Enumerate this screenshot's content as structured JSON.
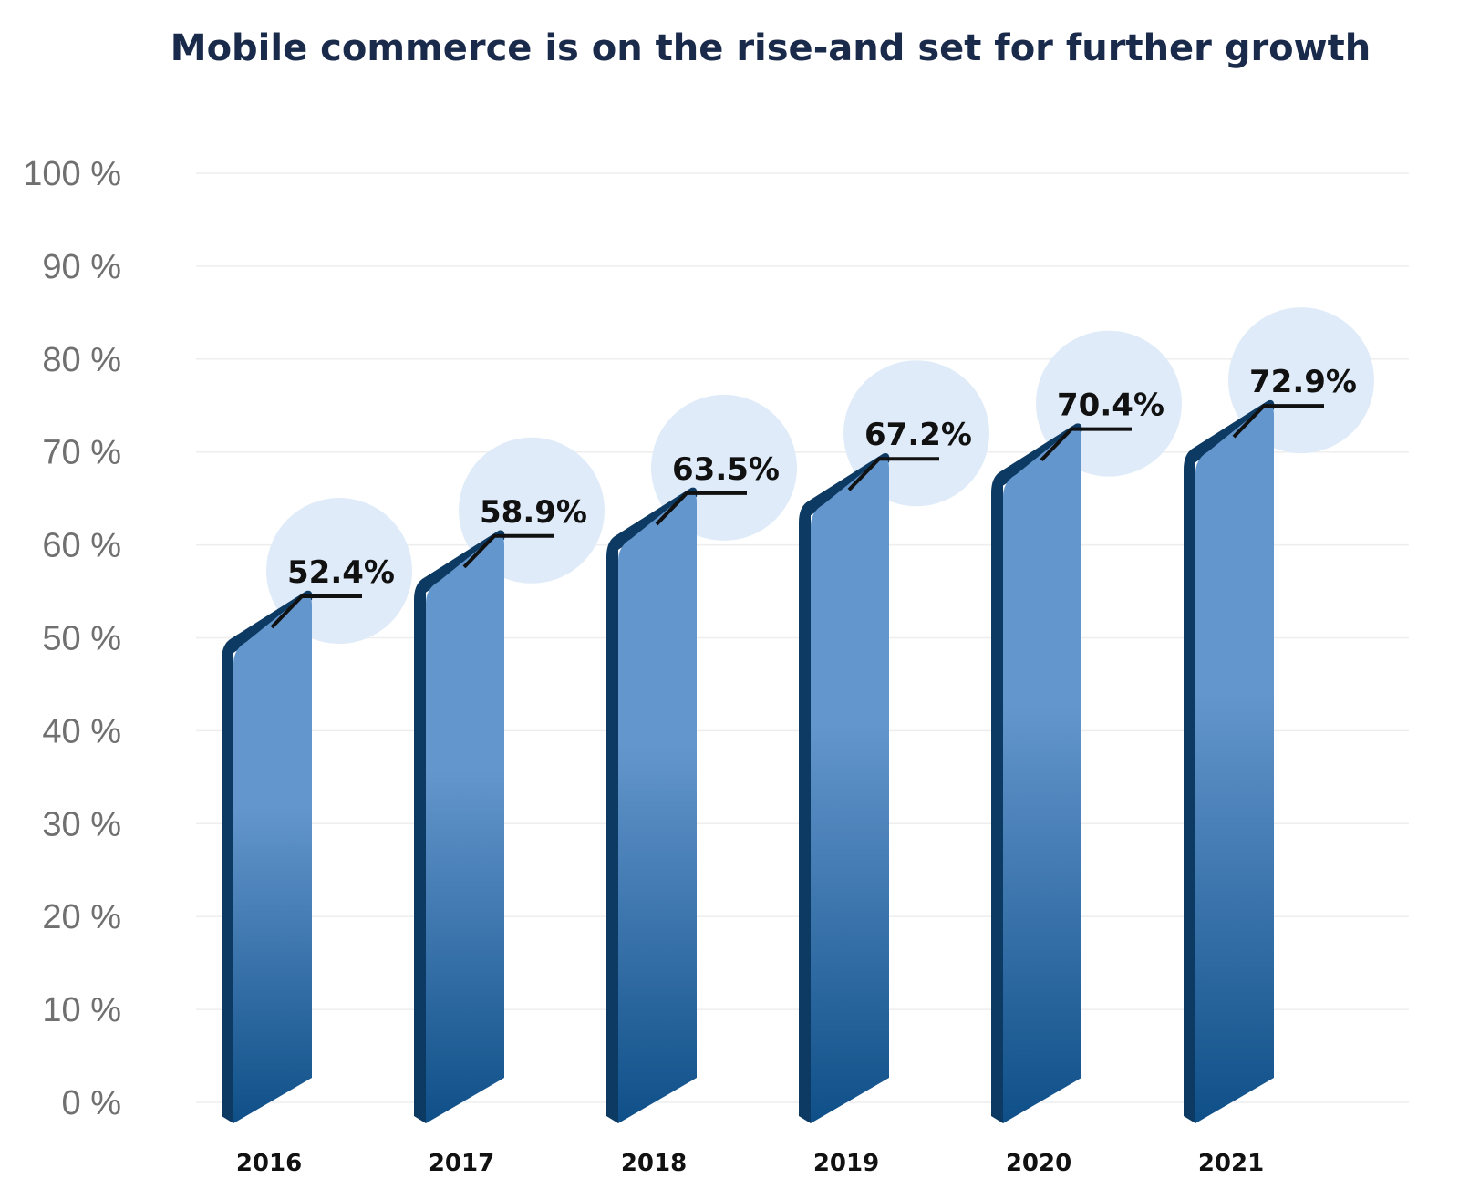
{
  "chart_data": {
    "type": "bar",
    "title": "Mobile commerce is on the rise-and set for further growth",
    "categories": [
      "2016",
      "2017",
      "2018",
      "2019",
      "2020",
      "2021"
    ],
    "values": [
      52.4,
      58.9,
      63.5,
      67.2,
      70.4,
      72.9
    ],
    "value_labels": [
      "52.4%",
      "58.9%",
      "63.5%",
      "67.2%",
      "70.4%",
      "72.9%"
    ],
    "y_ticks": [
      0,
      10,
      20,
      30,
      40,
      50,
      60,
      70,
      80,
      90,
      100
    ],
    "y_tick_labels": [
      "0 %",
      "10 %",
      "20 %",
      "30 %",
      "40 %",
      "50 %",
      "60 %",
      "70 %",
      "80 %",
      "90 %",
      "100 %"
    ],
    "ylim": [
      0,
      100
    ],
    "xlabel": "",
    "ylabel": "",
    "grid": true,
    "legend": "none"
  },
  "colors": {
    "title": "#1a2a4a",
    "y_tick": "#707070",
    "x_tick": "#111111",
    "grid": "#eeeeee",
    "bar_top": "#6396cc",
    "bar_bottom": "#0f4f88",
    "bar_edge": "#0d3a63",
    "bubble": "#dfebf8",
    "label": "#111111"
  }
}
